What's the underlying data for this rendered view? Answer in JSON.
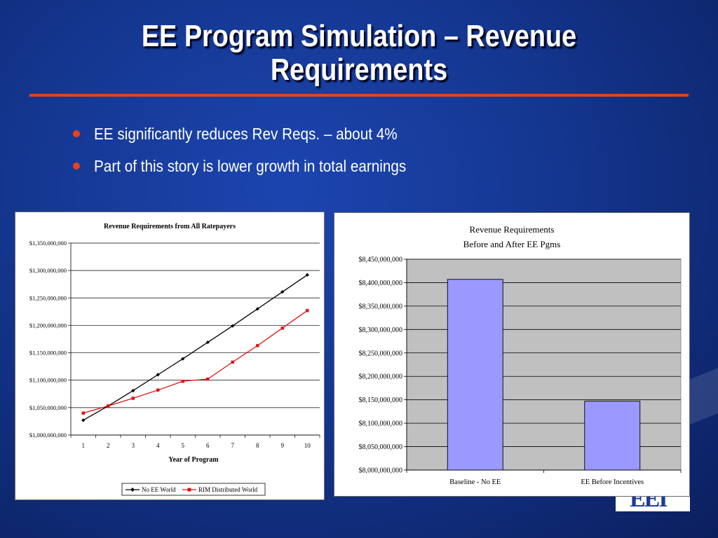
{
  "slide": {
    "title": "EE Program Simulation – Revenue Requirements",
    "bullets": [
      "EE significantly reduces Rev Reqs. – about 4%",
      "Part of this story is lower growth in total earnings"
    ],
    "logo_text": "EEI",
    "colors": {
      "accent": "#e8421c",
      "text": "#ffffff"
    }
  },
  "chart_data": [
    {
      "type": "line",
      "title": "Revenue Requirements from All Ratepayers",
      "xlabel": "Year of Program",
      "ylabel": "",
      "x": [
        1,
        2,
        3,
        4,
        5,
        6,
        7,
        8,
        9,
        10
      ],
      "ylim": [
        1000000000,
        1350000000
      ],
      "yticks": [
        1000000000,
        1050000000,
        1100000000,
        1150000000,
        1200000000,
        1250000000,
        1300000000,
        1350000000
      ],
      "ytick_labels": [
        "$1,000,000,000",
        "$1,050,000,000",
        "$1,100,000,000",
        "$1,150,000,000",
        "$1,200,000,000",
        "$1,250,000,000",
        "$1,300,000,000",
        "$1,350,000,000"
      ],
      "grid": true,
      "legend": "bottom",
      "series": [
        {
          "name": "No EE World",
          "color": "#000000",
          "marker": "diamond",
          "values": [
            1027000000,
            1053000000,
            1081000000,
            1110000000,
            1139000000,
            1169000000,
            1199000000,
            1230000000,
            1261000000,
            1292000000
          ]
        },
        {
          "name": "RIM Distributed World",
          "color": "#e01010",
          "marker": "square",
          "values": [
            1040000000,
            1053000000,
            1067000000,
            1082000000,
            1098000000,
            1102000000,
            1133000000,
            1163000000,
            1195000000,
            1227000000
          ]
        }
      ]
    },
    {
      "type": "bar",
      "title": "Revenue Requirements",
      "subtitle": "Before and After EE Pgms",
      "categories": [
        "Baseline - No EE",
        "EE Before Incentives"
      ],
      "values": [
        8407000000,
        8147000000
      ],
      "ylim": [
        8000000000,
        8450000000
      ],
      "yticks": [
        8000000000,
        8050000000,
        8100000000,
        8150000000,
        8200000000,
        8250000000,
        8300000000,
        8350000000,
        8400000000,
        8450000000
      ],
      "ytick_labels": [
        "$8,000,000,000",
        "$8,050,000,000",
        "$8,100,000,000",
        "$8,150,000,000",
        "$8,200,000,000",
        "$8,250,000,000",
        "$8,300,000,000",
        "$8,350,000,000",
        "$8,400,000,000",
        "$8,450,000,000"
      ],
      "grid": true,
      "plot_background": "#c0c0c0",
      "bar_color": "#9999ff"
    }
  ]
}
